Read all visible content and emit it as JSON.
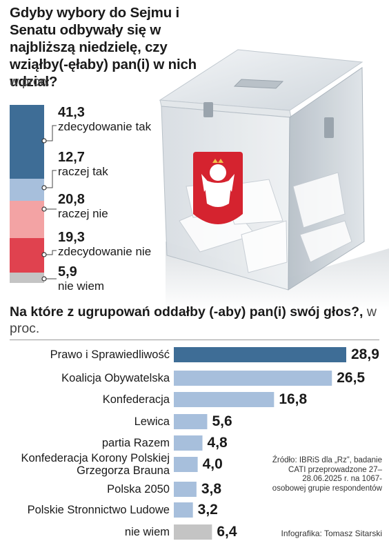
{
  "q1": {
    "title": "Gdyby wybory do Sejmu i Senatu odbywały się w najbliższą niedzielę, czy wziąłby(-ęłaby) pan(i) w nich udział?",
    "unit": "w proc.",
    "segments": [
      {
        "value": 41.3,
        "value_text": "41,3",
        "label": "zdecydowanie tak",
        "color": "#3e6d96"
      },
      {
        "value": 12.7,
        "value_text": "12,7",
        "label": "raczej tak",
        "color": "#a7bfdc"
      },
      {
        "value": 20.8,
        "value_text": "20,8",
        "label": "raczej nie",
        "color": "#f3a3a4"
      },
      {
        "value": 19.3,
        "value_text": "19,3",
        "label": "zdecydowanie nie",
        "color": "#e0424f"
      },
      {
        "value": 5.9,
        "value_text": "5,9",
        "label": "nie wiem",
        "color": "#c4c4c4"
      }
    ]
  },
  "q2": {
    "title": "Na które z ugrupowań oddałby (-aby) pan(i) swój głos?,",
    "unit": "w proc.",
    "source": "Źródło: IBRiS dla „Rz”, badanie CATI przeprowadzone 27–28.06.2025 r. na 1067-osobowej grupie respondentów",
    "credit": "Infografika: Tomasz Sitarski"
  },
  "chart_data": [
    {
      "type": "bar",
      "orientation": "stacked-vertical",
      "title": "Gdyby wybory do Sejmu i Senatu odbywały się w najbliższą niedzielę, czy wziąłby(-ęłaby) pan(i) w nich udział?",
      "categories": [
        "zdecydowanie tak",
        "raczej tak",
        "raczej nie",
        "zdecydowanie nie",
        "nie wiem"
      ],
      "values": [
        41.3,
        12.7,
        20.8,
        19.3,
        5.9
      ],
      "ylabel": "w proc."
    },
    {
      "type": "bar",
      "orientation": "horizontal",
      "title": "Na które z ugrupowań oddałby (-aby) pan(i) swój głos?",
      "categories": [
        "Prawo i Sprawiedliwość",
        "Koalicja Obywatelska",
        "Konfederacja",
        "Lewica",
        "partia Razem",
        "Konfederacja Korony Polskiej Grzegorza Brauna",
        "Polska 2050",
        "Polskie Stronnictwo Ludowe",
        "nie wiem"
      ],
      "values": [
        28.9,
        26.5,
        16.8,
        5.6,
        4.8,
        4.0,
        3.8,
        3.2,
        6.4
      ],
      "value_texts": [
        "28,9",
        "26,5",
        "16,8",
        "5,6",
        "4,8",
        "4,0",
        "3,8",
        "3,2",
        "6,4"
      ],
      "label_lines": [
        [
          "Prawo i Sprawiedliwość"
        ],
        [
          "Koalicja Obywatelska"
        ],
        [
          "Konfederacja"
        ],
        [
          "Lewica"
        ],
        [
          "partia Razem"
        ],
        [
          "Konfederacja Korony Polskiej",
          "Grzegorza Brauna"
        ],
        [
          "Polska 2050"
        ],
        [
          "Polskie Stronnictwo Ludowe"
        ],
        [
          "nie wiem"
        ]
      ],
      "colors": [
        "#3e6d96",
        "#a7bfdc",
        "#a7bfdc",
        "#a7bfdc",
        "#a7bfdc",
        "#a7bfdc",
        "#a7bfdc",
        "#a7bfdc",
        "#c4c4c4"
      ],
      "xlabel": "w proc."
    }
  ]
}
